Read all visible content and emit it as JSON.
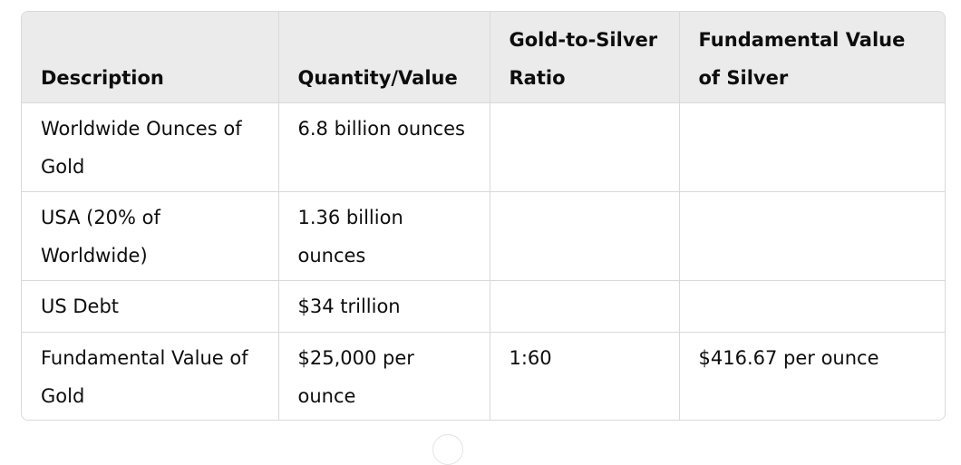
{
  "table": {
    "headers": [
      "Description",
      "Quantity/Value",
      "Gold-to-Silver Ratio",
      "Fundamental Value of Silver"
    ],
    "rows": [
      [
        "Worldwide Ounces of Gold",
        "6.8 billion ounces",
        "",
        ""
      ],
      [
        "USA (20% of Worldwide)",
        "1.36 billion ounces",
        "",
        ""
      ],
      [
        "US Debt",
        "$34 trillion",
        "",
        ""
      ],
      [
        "Fundamental Value of Gold",
        "$25,000 per ounce",
        "1:60",
        "$416.67 per ounce"
      ]
    ]
  }
}
